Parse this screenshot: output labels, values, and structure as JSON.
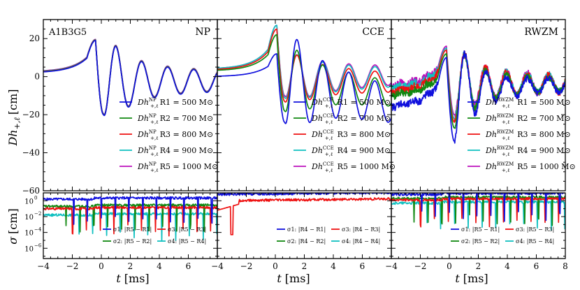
{
  "chart_data": {
    "type": "line",
    "figure": {
      "ylabel_top": "Dh_{+,ℓ} [cm]",
      "ylabel_bottom": "σ [cm]",
      "xlabel": "t [ms]",
      "label_top_y": "Dh",
      "label_top_sub": "+,ℓ",
      "label_top_unit": "[cm]",
      "label_bot_y": "σ",
      "label_bot_unit": "[cm]",
      "label_x_var": "t",
      "label_x_unit": "[ms]"
    },
    "top_yticks": [
      "20",
      "0",
      "−20",
      "−40",
      "−60"
    ],
    "top_ylim": [
      -60,
      30
    ],
    "bottom_yticks": [
      "10",
      "10",
      "10",
      "10"
    ],
    "bottom_ytick_exp": [
      "0",
      "−2",
      "−4",
      "−6"
    ],
    "bottom_ylim_log10": [
      -7.3,
      1
    ],
    "colors": [
      "#1010dd",
      "#118811",
      "#ee1111",
      "#11c0c0",
      "#bb11bb"
    ],
    "panels": [
      {
        "title": "NP",
        "tag": "A1B3G5",
        "xlim": [
          -4,
          8
        ],
        "xticks": [
          "−4",
          "−2",
          "0",
          "2",
          "4",
          "6"
        ],
        "legend_sup": "NP",
        "legend": [
          {
            "rlabel": "R1 = 500 M⊙",
            "sub": "1",
            "value": "500"
          },
          {
            "rlabel": "R2 = 700 M⊙",
            "sub": "2",
            "value": "700"
          },
          {
            "rlabel": "R3 = 800 M⊙",
            "sub": "3",
            "value": "800"
          },
          {
            "rlabel": "R4 = 900 M⊙",
            "sub": "4",
            "value": "900"
          },
          {
            "rlabel": "R5 = 1000 M⊙",
            "sub": "5",
            "value": "1000"
          }
        ],
        "model": {
          "pre": 2,
          "t0": -0.4,
          "A0": 19,
          "D0": -20,
          "A": 10,
          "tau": 3.5,
          "om": 1.05,
          "offs": [
            0,
            0.15,
            0.3,
            0.45,
            0.6
          ],
          "drift": [
            0,
            0,
            0,
            0,
            0
          ],
          "noise": 0
        },
        "residual_legend": [
          {
            "sym": "σ1",
            "expr": "|R5 − R1|"
          },
          {
            "sym": "σ3",
            "expr": "|R5 − R3|"
          },
          {
            "sym": "σ2",
            "expr": "|R5 − R2|"
          },
          {
            "sym": "σ4",
            "expr": "|R5 − R4|"
          }
        ],
        "residuals": {
          "base": [
            0.2,
            -0.7,
            -1.0,
            -1.8
          ],
          "dips": true
        }
      },
      {
        "title": "CCE",
        "xlim": [
          -4,
          8
        ],
        "xticks": [
          "−4",
          "−2",
          "0",
          "2",
          "4",
          "6"
        ],
        "legend_sup": "CCE",
        "legend": [
          {
            "rlabel": "R1 = 500 M⊙",
            "sub": "1",
            "value": "500"
          },
          {
            "rlabel": "R2 = 700 M⊙",
            "sub": "2",
            "value": "700"
          },
          {
            "rlabel": "R3 = 800 M⊙",
            "sub": "3",
            "value": "800"
          },
          {
            "rlabel": "R4 = 900 M⊙",
            "sub": "4",
            "value": "900"
          },
          {
            "rlabel": "R5 = 1000 M⊙",
            "sub": "5",
            "value": "1000"
          }
        ],
        "model": {
          "pre": [
            0,
            3,
            3.5,
            4,
            4
          ],
          "t0": 0.1,
          "A0": [
            12,
            22,
            25,
            27,
            27
          ],
          "D0": [
            -24,
            -18,
            -13,
            -11,
            -10
          ],
          "A": [
            13,
            9,
            7,
            7,
            7
          ],
          "tau": 6,
          "om": 1.05,
          "offs": [
            0,
            0,
            0,
            0,
            0
          ],
          "drift": [
            -1.6,
            -0.9,
            -0.2,
            0.1,
            0.2
          ],
          "noise": 0
        },
        "residual_legend": [
          {
            "sym": "σ1",
            "expr": "|R4 − R1|"
          },
          {
            "sym": "σ3",
            "expr": "|R4 − R3|"
          },
          {
            "sym": "σ2",
            "expr": "|R4 − R2|"
          },
          {
            "sym": "σ4",
            "expr": "|R4 − R4|"
          }
        ],
        "residuals": {
          "base": [
            0.8,
            null,
            0.0,
            null
          ],
          "dips": false
        }
      },
      {
        "title": "RWZM",
        "xlim": [
          -4,
          8
        ],
        "xticks": [
          "−4",
          "−2",
          "0",
          "2",
          "4",
          "6",
          "8"
        ],
        "legend_sup": "RWZM",
        "legend": [
          {
            "rlabel": "R1 = 500 M⊙",
            "sub": "1",
            "value": "500"
          },
          {
            "rlabel": "R2 = 700 M⊙",
            "sub": "2",
            "value": "700"
          },
          {
            "rlabel": "R3 = 800 M⊙",
            "sub": "3",
            "value": "800"
          },
          {
            "rlabel": "R4 = 900 M⊙",
            "sub": "4",
            "value": "900"
          },
          {
            "rlabel": "R5 = 1000 M⊙",
            "sub": "5",
            "value": "1000"
          }
        ],
        "model": {
          "pre": [
            -16,
            -10,
            -8,
            -6,
            -5
          ],
          "t0": -0.2,
          "A0": [
            10,
            12,
            14,
            15,
            16
          ],
          "D0": [
            -34,
            -27,
            -24,
            -22,
            -20
          ],
          "A": [
            5,
            5,
            6,
            6,
            6
          ],
          "tau": 6,
          "om": 1.3,
          "offs": [
            0,
            0,
            0,
            0,
            0
          ],
          "drift": [
            0.4,
            0.2,
            0.1,
            0.1,
            0
          ],
          "noise": 2.5
        },
        "residual_legend": [
          {
            "sym": "σ1",
            "expr": "|R5 − R1|"
          },
          {
            "sym": "σ3",
            "expr": "|R5 − R3|"
          },
          {
            "sym": "σ2",
            "expr": "|R5 − R2|"
          },
          {
            "sym": "σ4",
            "expr": "|R5 − R4|"
          }
        ],
        "residuals": {
          "base": [
            0.8,
            0.3,
            0.1,
            -0.3
          ],
          "dips": true
        }
      }
    ]
  }
}
